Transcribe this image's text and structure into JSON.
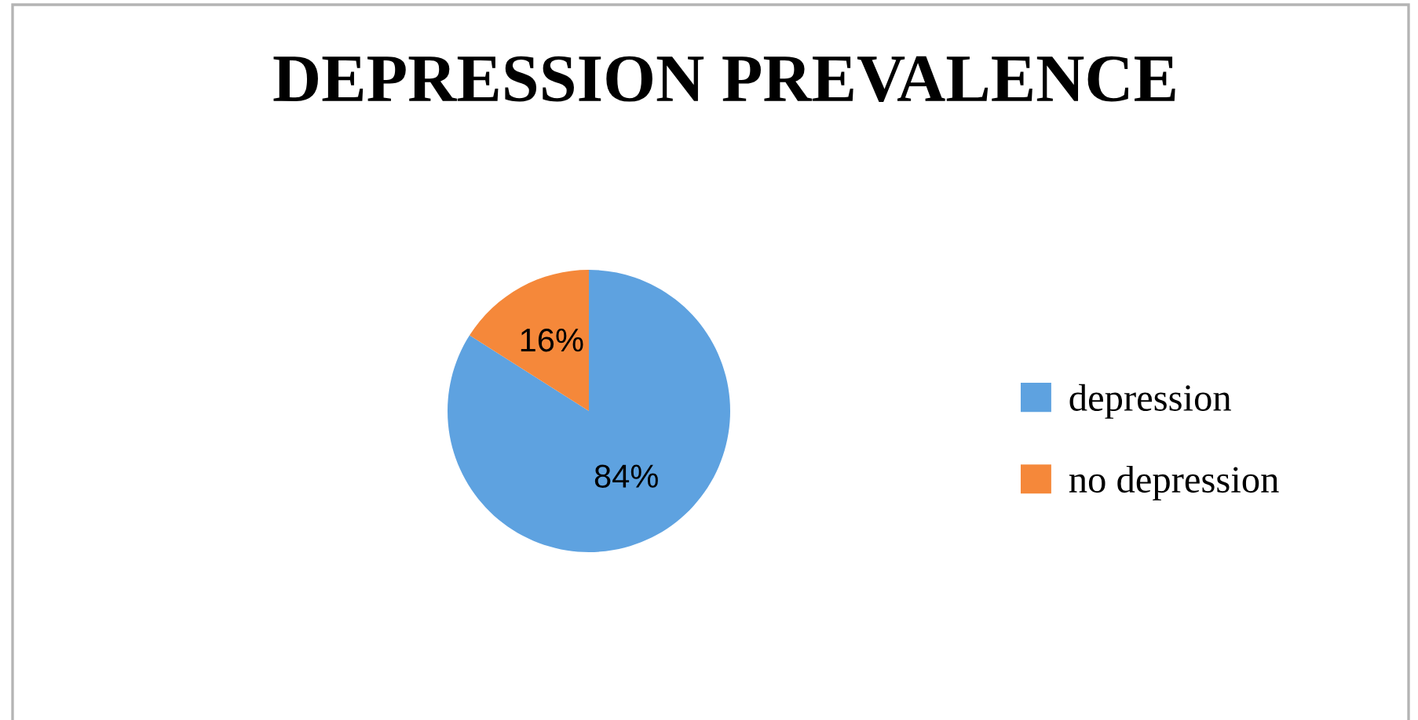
{
  "chart_data": {
    "type": "pie",
    "title": "DEPRESSION PREVALENCE",
    "categories": [
      "depression",
      "no depression"
    ],
    "values": [
      84,
      16
    ],
    "colors": [
      "#5ea2e0",
      "#f5883a"
    ],
    "value_labels": [
      "84%",
      "16%"
    ],
    "legend": "right"
  }
}
